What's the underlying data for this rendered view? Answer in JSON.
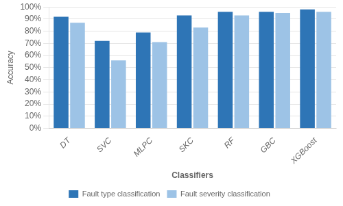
{
  "chart_data": {
    "type": "bar",
    "categories": [
      "DT",
      "SVC",
      "MLPC",
      "SKC",
      "RF",
      "GBC",
      "XGBoost"
    ],
    "series": [
      {
        "name": "Fault type classification",
        "color": "#2E75B6",
        "values": [
          0.92,
          0.72,
          0.79,
          0.93,
          0.96,
          0.96,
          0.98
        ]
      },
      {
        "name": "Fault severity classification",
        "color": "#9DC3E6",
        "values": [
          0.87,
          0.56,
          0.71,
          0.83,
          0.93,
          0.95,
          0.96
        ]
      }
    ],
    "xlabel": "Classifiers",
    "ylabel": "Accuracy",
    "ylim": [
      0,
      1.0
    ],
    "yticks": [
      {
        "value": 0.0,
        "label": "0%"
      },
      {
        "value": 0.1,
        "label": "10%"
      },
      {
        "value": 0.2,
        "label": "20%"
      },
      {
        "value": 0.3,
        "label": "30%"
      },
      {
        "value": 0.4,
        "label": "40%"
      },
      {
        "value": 0.5,
        "label": "50%"
      },
      {
        "value": 0.6,
        "label": "60%"
      },
      {
        "value": 0.7,
        "label": "70%"
      },
      {
        "value": 0.8,
        "label": "80%"
      },
      {
        "value": 0.9,
        "label": "90%"
      },
      {
        "value": 1.0,
        "label": "100%"
      }
    ],
    "grid": true,
    "legend": "bottom"
  }
}
